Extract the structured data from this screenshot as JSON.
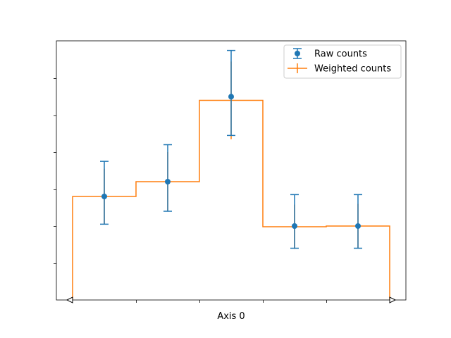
{
  "chart_data": {
    "type": "line",
    "title": "",
    "xlabel": "Axis 0",
    "ylabel": "",
    "xlim": [
      0,
      5
    ],
    "ylim": [
      0,
      7
    ],
    "grid": false,
    "legend_position": "top-right",
    "x_ticks": [
      1,
      2,
      3,
      4
    ],
    "y_ticks": [
      1,
      2,
      3,
      4,
      5,
      6
    ],
    "bin_edges": [
      0,
      1,
      2,
      3,
      4,
      5
    ],
    "bin_centers": [
      0.5,
      1.5,
      2.5,
      3.5,
      4.5
    ],
    "series": [
      {
        "name": "Raw counts",
        "style": "errorbar-points",
        "color": "#1f77b4",
        "values": [
          2.8,
          3.2,
          5.5,
          2.0,
          2.0
        ],
        "err_low": [
          0.75,
          0.8,
          1.05,
          0.6,
          0.6
        ],
        "err_high": [
          0.95,
          1.0,
          1.25,
          0.85,
          0.85
        ]
      },
      {
        "name": "Weighted counts",
        "style": "step-errorbar",
        "color": "#ff7f0e",
        "values": [
          2.8,
          3.2,
          5.4,
          1.98,
          2.0
        ],
        "err_low": [
          0.75,
          0.8,
          1.05,
          0.6,
          0.6
        ],
        "err_high": [
          0.75,
          0.8,
          1.05,
          0.6,
          0.6
        ]
      }
    ]
  }
}
